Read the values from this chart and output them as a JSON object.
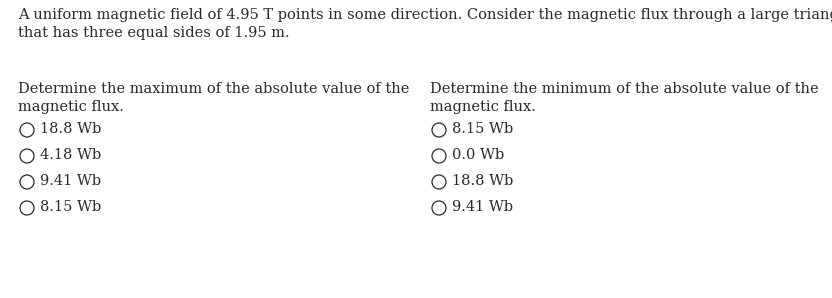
{
  "bg_color": "#ffffff",
  "text_color": "#2a2a2a",
  "font_size": 10.5,
  "intro_line1": "A uniform magnetic field of 4.95 T points in some direction. Consider the magnetic flux through a large triangular wire loop",
  "intro_line2": "that has three equal sides of 1.95 m.",
  "left_q1": "Determine the maximum of the absolute value of the",
  "left_q2": "magnetic flux.",
  "right_q1": "Determine the minimum of the absolute value of the",
  "right_q2": "magnetic flux.",
  "left_options": [
    "18.8 Wb",
    "4.18 Wb",
    "9.41 Wb",
    "8.15 Wb"
  ],
  "right_options": [
    "8.15 Wb",
    "0.0 Wb",
    "18.8 Wb",
    "9.41 Wb"
  ],
  "fig_width": 8.32,
  "fig_height": 2.98,
  "dpi": 100,
  "font_family": "DejaVu Serif"
}
